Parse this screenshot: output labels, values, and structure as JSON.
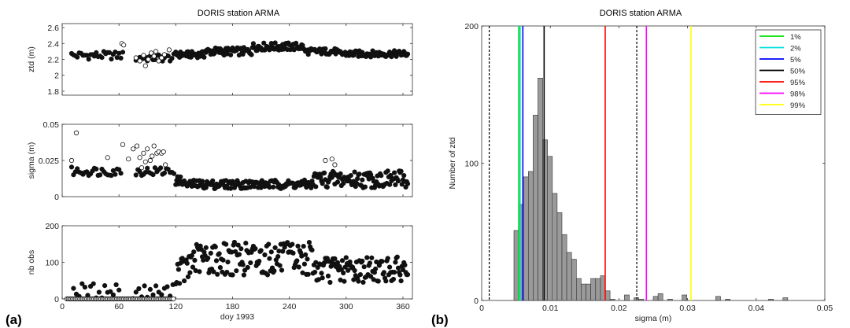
{
  "figure": {
    "panel_labels": [
      "(a)",
      "(b)"
    ]
  },
  "chart_data": [
    {
      "type": "scatter",
      "panel": "(a)",
      "title": "DORIS station ARMA",
      "xlabel": "",
      "ylabel": "ztd (m)",
      "xlim": [
        0,
        370
      ],
      "ylim": [
        1.75,
        2.65
      ],
      "xticks": [
        0,
        60,
        120,
        180,
        240,
        300,
        360
      ],
      "yticks": [
        1.8,
        2,
        2.2,
        2.4,
        2.6
      ],
      "series": [
        {
          "marker": "filled",
          "segments": [
            {
              "x0": 10,
              "x1": 65,
              "step": 2,
              "y": 2.25,
              "amp": 0.05
            },
            {
              "x0": 78,
              "x1": 118,
              "step": 2,
              "y": 2.22,
              "amp": 0.05
            },
            {
              "x0": 120,
              "x1": 150,
              "step": 1,
              "y": 2.26,
              "amp": 0.04
            },
            {
              "x0": 151,
              "x1": 200,
              "step": 1,
              "y": 2.3,
              "amp": 0.05
            },
            {
              "x0": 201,
              "x1": 255,
              "step": 1,
              "y": 2.36,
              "amp": 0.05
            },
            {
              "x0": 256,
              "x1": 290,
              "step": 1,
              "y": 2.3,
              "amp": 0.04
            },
            {
              "x0": 291,
              "x1": 365,
              "step": 1,
              "y": 2.27,
              "amp": 0.04
            }
          ]
        },
        {
          "marker": "open",
          "points": [
            [
              63,
              2.4
            ],
            [
              65,
              2.38
            ],
            [
              78,
              2.22
            ],
            [
              82,
              2.18
            ],
            [
              86,
              2.25
            ],
            [
              88,
              2.12
            ],
            [
              91,
              2.2
            ],
            [
              94,
              2.28
            ],
            [
              97,
              2.24
            ],
            [
              99,
              2.3
            ],
            [
              102,
              2.18
            ],
            [
              105,
              2.22
            ],
            [
              108,
              2.26
            ],
            [
              113,
              2.32
            ]
          ]
        }
      ]
    },
    {
      "type": "scatter",
      "panel": "(a)",
      "title": "",
      "xlabel": "",
      "ylabel": "sigma (m)",
      "xlim": [
        0,
        370
      ],
      "ylim": [
        0,
        0.05
      ],
      "xticks": [
        0,
        60,
        120,
        180,
        240,
        300,
        360
      ],
      "yticks": [
        0,
        0.025,
        0.05
      ],
      "ytick_labels": [
        "0",
        "0.025",
        "0.05"
      ],
      "series": [
        {
          "marker": "filled",
          "segments": [
            {
              "x0": 10,
              "x1": 62,
              "step": 2,
              "y": 0.0175,
              "amp": 0.003
            },
            {
              "x0": 78,
              "x1": 118,
              "step": 2,
              "y": 0.0175,
              "amp": 0.003
            },
            {
              "x0": 120,
              "x1": 128,
              "step": 1,
              "y": 0.011,
              "amp": 0.003
            },
            {
              "x0": 129,
              "x1": 265,
              "step": 1,
              "y": 0.0085,
              "amp": 0.003
            },
            {
              "x0": 266,
              "x1": 365,
              "step": 1,
              "y": 0.012,
              "amp": 0.006
            }
          ]
        },
        {
          "marker": "open",
          "points": [
            [
              10,
              0.025
            ],
            [
              15,
              0.044
            ],
            [
              48,
              0.027
            ],
            [
              64,
              0.036
            ],
            [
              70,
              0.026
            ],
            [
              75,
              0.033
            ],
            [
              79,
              0.035
            ],
            [
              82,
              0.027
            ],
            [
              84,
              0.02
            ],
            [
              86,
              0.03
            ],
            [
              88,
              0.024
            ],
            [
              90,
              0.033
            ],
            [
              93,
              0.025
            ],
            [
              95,
              0.028
            ],
            [
              97,
              0.035
            ],
            [
              100,
              0.03
            ],
            [
              102,
              0.031
            ],
            [
              105,
              0.03
            ],
            [
              107,
              0.031
            ],
            [
              109,
              0.022
            ],
            [
              278,
              0.025
            ],
            [
              285,
              0.026
            ],
            [
              288,
              0.022
            ]
          ]
        }
      ]
    },
    {
      "type": "scatter",
      "panel": "(a)",
      "title": "",
      "xlabel": "doy 1993",
      "ylabel": "nb obs",
      "xlim": [
        0,
        370
      ],
      "ylim": [
        0,
        200
      ],
      "xticks": [
        0,
        60,
        120,
        180,
        240,
        300,
        360
      ],
      "yticks": [
        0,
        100,
        200
      ],
      "series": [
        {
          "marker": "filled",
          "segments": [
            {
              "x0": 12,
              "x1": 60,
              "step": 3,
              "y": 22,
              "amp": 22
            },
            {
              "x0": 75,
              "x1": 118,
              "step": 3,
              "y": 20,
              "amp": 20
            },
            {
              "x0": 120,
              "x1": 135,
              "step": 1,
              "y": 80,
              "amp": 40
            },
            {
              "x0": 136,
              "x1": 265,
              "step": 1,
              "y": 110,
              "amp": 45
            },
            {
              "x0": 266,
              "x1": 365,
              "step": 1,
              "y": 80,
              "amp": 35
            }
          ]
        },
        {
          "marker": "open",
          "baseline": 0,
          "segments": [
            {
              "x0": 5,
              "x1": 118,
              "step": 1.5
            }
          ]
        }
      ]
    },
    {
      "type": "bar",
      "panel": "(b)",
      "title": "DORIS station ARMA",
      "xlabel": "sigma (m)",
      "ylabel": "Number of ztd",
      "xlim": [
        0,
        0.05
      ],
      "ylim": [
        0,
        200
      ],
      "xticks": [
        0,
        0.01,
        0.02,
        0.03,
        0.04,
        0.05
      ],
      "xtick_labels": [
        "0",
        "0.01",
        "0.02",
        "0.03",
        "0.04",
        "0.05"
      ],
      "yticks": [
        0,
        100,
        200
      ],
      "bin_width": 0.0007,
      "bins": [
        [
          0.0047,
          51
        ],
        [
          0.0054,
          70
        ],
        [
          0.0061,
          90
        ],
        [
          0.0068,
          94
        ],
        [
          0.0075,
          135
        ],
        [
          0.0082,
          162
        ],
        [
          0.0089,
          117
        ],
        [
          0.0096,
          105
        ],
        [
          0.0103,
          78
        ],
        [
          0.011,
          64
        ],
        [
          0.0117,
          48
        ],
        [
          0.0124,
          35
        ],
        [
          0.0131,
          30
        ],
        [
          0.0138,
          16
        ],
        [
          0.0145,
          12
        ],
        [
          0.0152,
          12
        ],
        [
          0.0159,
          16
        ],
        [
          0.0166,
          16
        ],
        [
          0.0173,
          18
        ],
        [
          0.018,
          7
        ],
        [
          0.0187,
          1
        ],
        [
          0.0208,
          4
        ],
        [
          0.0222,
          2
        ],
        [
          0.0229,
          1
        ],
        [
          0.025,
          3
        ],
        [
          0.0257,
          5
        ],
        [
          0.0271,
          1
        ],
        [
          0.0292,
          4
        ],
        [
          0.0341,
          3
        ],
        [
          0.0355,
          1
        ],
        [
          0.0418,
          1
        ],
        [
          0.0439,
          2
        ]
      ],
      "vlines": [
        {
          "label": "",
          "x": 0.0011,
          "color": "#000000",
          "dashed": true
        },
        {
          "label": "",
          "x": 0.0226,
          "color": "#000000",
          "dashed": true
        },
        {
          "label": "1%",
          "x": 0.0054,
          "color": "#00e000",
          "dashed": false
        },
        {
          "label": "2%",
          "x": 0.0056,
          "color": "#00e0e0",
          "dashed": false
        },
        {
          "label": "5%",
          "x": 0.006,
          "color": "#0000ff",
          "dashed": false
        },
        {
          "label": "50%",
          "x": 0.0091,
          "color": "#000000",
          "dashed": false
        },
        {
          "label": "95%",
          "x": 0.018,
          "color": "#ff0000",
          "dashed": false
        },
        {
          "label": "98%",
          "x": 0.024,
          "color": "#ff00ff",
          "dashed": false
        },
        {
          "label": "99%",
          "x": 0.0305,
          "color": "#ffff00",
          "dashed": false
        }
      ],
      "legend": [
        "1%",
        "2%",
        "5%",
        "50%",
        "95%",
        "98%",
        "99%"
      ],
      "legend_position": "top-right"
    }
  ]
}
